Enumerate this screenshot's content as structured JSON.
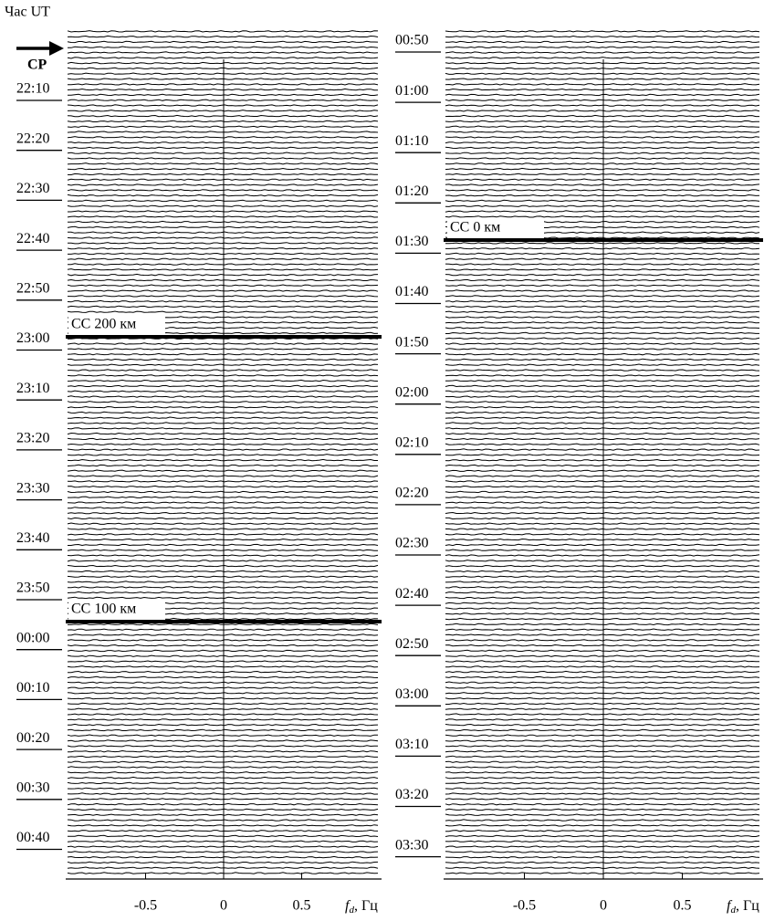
{
  "chart_data": [
    {
      "type": "waterfall",
      "ylabel": "Час UT",
      "categories": [
        "22:10",
        "22:20",
        "22:30",
        "22:40",
        "22:50",
        "23:00",
        "23:10",
        "23:20",
        "23:30",
        "23:40",
        "23:50",
        "00:00",
        "00:10",
        "00:20",
        "00:30",
        "00:40"
      ],
      "xlim": [
        -1,
        1
      ],
      "xticks": [
        -0.5,
        0,
        0.5
      ],
      "xlabel": {
        "symbol": "f",
        "subscript": "d",
        "unit": ", Гц"
      },
      "annotations": [
        "СР",
        "СС 200 км",
        "СС 100 км"
      ]
    },
    {
      "type": "waterfall",
      "categories": [
        "00:50",
        "01:00",
        "01:10",
        "01:20",
        "01:30",
        "01:40",
        "01:50",
        "02:00",
        "02:10",
        "02:20",
        "02:30",
        "02:40",
        "02:50",
        "03:00",
        "03:10",
        "03:20",
        "03:30"
      ],
      "xlim": [
        -1,
        1
      ],
      "xticks": [
        -0.5,
        0,
        0.5
      ],
      "xlabel": {
        "symbol": "f",
        "subscript": "d",
        "unit": ", Гц"
      },
      "annotations": [
        "СС 0 км"
      ]
    }
  ]
}
